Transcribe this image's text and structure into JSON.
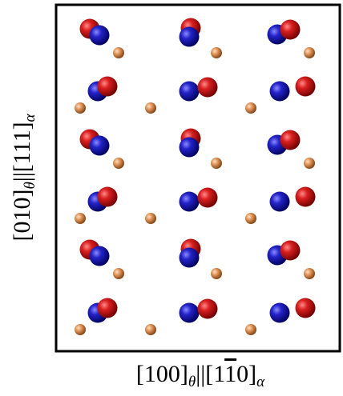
{
  "x_label": {
    "a": "[100]",
    "b": "θ",
    "c": "||[1",
    "d": "1",
    "e": "0]",
    "f": "α"
  },
  "y_label": {
    "a": "[010]",
    "b": "θ",
    "c": "||[111]",
    "d": "α"
  }
}
